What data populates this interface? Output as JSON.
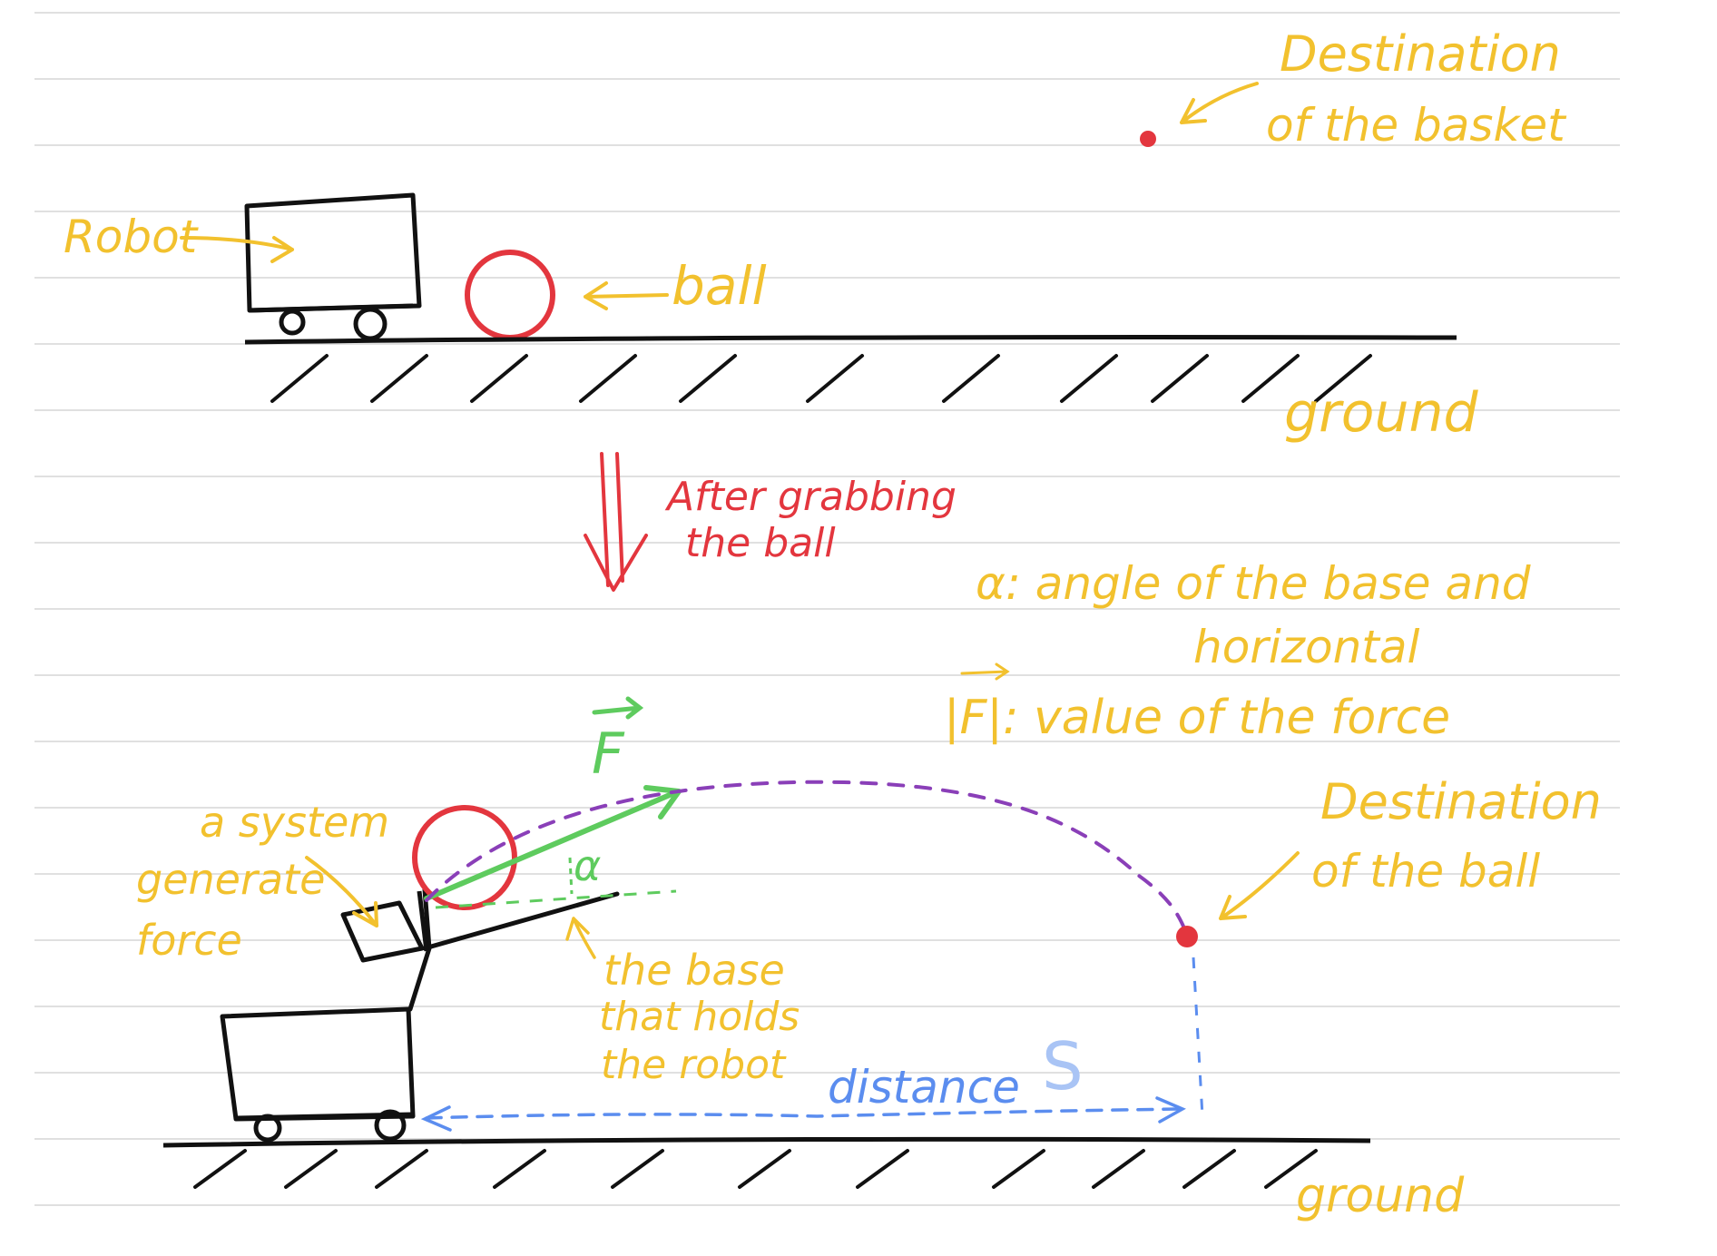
{
  "colors": {
    "ink": "#111111",
    "ball": "#e3363e",
    "label": "#f2c12e",
    "force": "#5ecb5e",
    "trajectory": "#8a3fb8",
    "distance": "#5b8def",
    "distance_symbol": "#a9c4f5",
    "ruled_line": "#d6d6d6"
  },
  "top_scene": {
    "basket_label_line1": "Destination",
    "basket_label_line2": "of the basket",
    "robot_label": "Robot",
    "ball_label": "ball",
    "ground_label": "ground"
  },
  "transition": {
    "line1": "After grabbing",
    "line2": "the ball"
  },
  "legend": {
    "alpha_line1": "α: angle of the base and",
    "alpha_line2": "horizontal",
    "force_line": "|F|: value of the force"
  },
  "bottom_scene": {
    "force_symbol": "F",
    "alpha_symbol": "α",
    "system_label_line1": "a system",
    "system_label_line2": "generate",
    "system_label_line3": "force",
    "base_label_line1": "the base",
    "base_label_line2": "that holds",
    "base_label_line3": "the robot",
    "distance_label": "distance",
    "distance_symbol": "S",
    "ball_dest_line1": "Destination",
    "ball_dest_line2": "of the ball",
    "ground_label": "ground"
  }
}
